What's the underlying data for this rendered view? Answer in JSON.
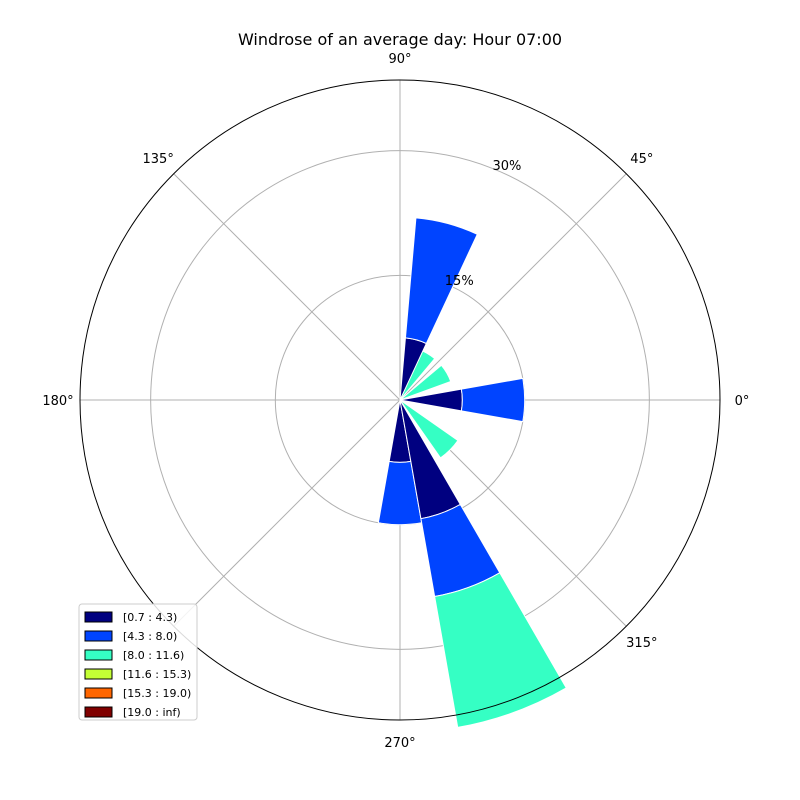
{
  "chart_data": {
    "type": "windrose",
    "title": "Windrose of an average day: Hour 07:00",
    "angle_tick_labels": [
      "0°",
      "45°",
      "90°",
      "135°",
      "180°",
      "270°",
      "315°"
    ],
    "angle_ticks_deg": [
      0,
      45,
      90,
      135,
      180,
      270,
      315
    ],
    "radial_tick_labels": [
      "15%",
      "30%"
    ],
    "radial_ticks": [
      15,
      30
    ],
    "rmax": 38.5,
    "radial_label_angle_deg": 67.5,
    "sector_width_deg": 20,
    "sectors": [
      {
        "angle_deg": 0,
        "segments": [
          7.5,
          7.5
        ]
      },
      {
        "angle_deg": 30,
        "segments": [
          0,
          0,
          6.5
        ]
      },
      {
        "angle_deg": 60,
        "segments": [
          0,
          0,
          6.5
        ]
      },
      {
        "angle_deg": 75,
        "segments": [
          7.5,
          14.5
        ]
      },
      {
        "angle_deg": 270,
        "segments": [
          7.5,
          7.5
        ]
      },
      {
        "angle_deg": 290,
        "segments": [
          14.5,
          9.5,
          16.0
        ]
      },
      {
        "angle_deg": 315,
        "segments": [
          0,
          0,
          8.5
        ]
      }
    ],
    "legend": {
      "placement": "lower-left",
      "entries": [
        {
          "label": "[0.7 : 4.3)",
          "color": "#000080"
        },
        {
          "label": "[4.3 : 8.0)",
          "color": "#0044ff"
        },
        {
          "label": "[8.0 : 11.6)",
          "color": "#35ffc4"
        },
        {
          "label": "[11.6 : 15.3)",
          "color": "#c4ff35"
        },
        {
          "label": "[15.3 : 19.0)",
          "color": "#ff6600"
        },
        {
          "label": "[19.0 : inf)",
          "color": "#800000"
        }
      ]
    },
    "grid": true
  }
}
